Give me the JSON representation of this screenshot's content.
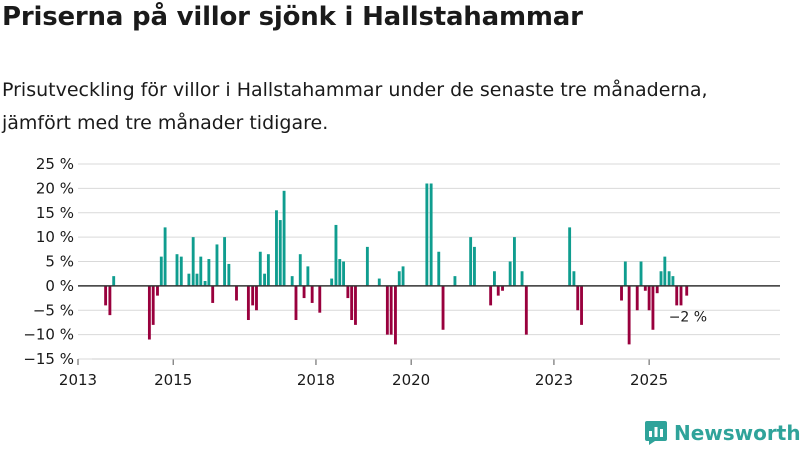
{
  "header": {
    "title": "Priserna på villor sjönk i Hallstahammar",
    "subtitle_line1": "Prisutveckling för villor i Hallstahammar under de senaste tre månaderna,",
    "subtitle_line2": "jämfört med tre månader tidigare."
  },
  "brand": {
    "name": "Newsworthy",
    "icon": "newsworthy-logo-icon",
    "color": "#2fa39a"
  },
  "colors": {
    "positive": "#0f9d8f",
    "negative": "#99003d",
    "grid": "#d9d9d9",
    "zero": "#333333",
    "text": "#1a1a1a"
  },
  "chart_data": {
    "type": "bar",
    "title": "Priserna på villor sjönk i Hallstahammar",
    "xlabel": "",
    "ylabel": "",
    "ylim": [
      -15,
      25
    ],
    "y_ticks": [
      25,
      20,
      15,
      10,
      5,
      0,
      -5,
      -10,
      -15
    ],
    "y_tick_labels": [
      "25 %",
      "20 %",
      "15 %",
      "10 %",
      "5 %",
      "0 %",
      "−5 %",
      "−10 %",
      "−15 %"
    ],
    "x_range": [
      2013.0,
      2027.75
    ],
    "x_ticks": [
      2013,
      2015,
      2018,
      2020,
      2023,
      2025
    ],
    "x_tick_labels": [
      "2013",
      "2015",
      "2018",
      "2020",
      "2023",
      "2025"
    ],
    "annotation": {
      "text": "−2 %",
      "x": 2025.79,
      "value": -2
    },
    "bar_width_years": 0.06,
    "points": [
      {
        "x": 2013.58,
        "value": -4
      },
      {
        "x": 2013.67,
        "value": -6
      },
      {
        "x": 2013.75,
        "value": 2
      },
      {
        "x": 2014.5,
        "value": -11
      },
      {
        "x": 2014.58,
        "value": -8
      },
      {
        "x": 2014.67,
        "value": -2
      },
      {
        "x": 2014.75,
        "value": 6
      },
      {
        "x": 2014.83,
        "value": 12
      },
      {
        "x": 2015.08,
        "value": 6.5
      },
      {
        "x": 2015.17,
        "value": 6
      },
      {
        "x": 2015.33,
        "value": 2.5
      },
      {
        "x": 2015.42,
        "value": 10
      },
      {
        "x": 2015.5,
        "value": 2.5
      },
      {
        "x": 2015.58,
        "value": 6
      },
      {
        "x": 2015.67,
        "value": 1
      },
      {
        "x": 2015.75,
        "value": 5.5
      },
      {
        "x": 2015.83,
        "value": -3.5
      },
      {
        "x": 2015.92,
        "value": 8.5
      },
      {
        "x": 2016.08,
        "value": 10
      },
      {
        "x": 2016.17,
        "value": 4.5
      },
      {
        "x": 2016.33,
        "value": -3
      },
      {
        "x": 2016.58,
        "value": -7
      },
      {
        "x": 2016.67,
        "value": -4
      },
      {
        "x": 2016.75,
        "value": -5
      },
      {
        "x": 2016.83,
        "value": 7
      },
      {
        "x": 2016.92,
        "value": 2.5
      },
      {
        "x": 2017.0,
        "value": 6.5
      },
      {
        "x": 2017.17,
        "value": 15.5
      },
      {
        "x": 2017.25,
        "value": 13.5
      },
      {
        "x": 2017.33,
        "value": 19.5
      },
      {
        "x": 2017.5,
        "value": 2
      },
      {
        "x": 2017.58,
        "value": -7
      },
      {
        "x": 2017.67,
        "value": 6.5
      },
      {
        "x": 2017.75,
        "value": -2.5
      },
      {
        "x": 2017.83,
        "value": 4
      },
      {
        "x": 2017.92,
        "value": -3.5
      },
      {
        "x": 2018.08,
        "value": -5.5
      },
      {
        "x": 2018.33,
        "value": 1.5
      },
      {
        "x": 2018.42,
        "value": 12.5
      },
      {
        "x": 2018.5,
        "value": 5.5
      },
      {
        "x": 2018.58,
        "value": 5
      },
      {
        "x": 2018.67,
        "value": -2.5
      },
      {
        "x": 2018.75,
        "value": -7
      },
      {
        "x": 2018.83,
        "value": -8
      },
      {
        "x": 2019.08,
        "value": 8
      },
      {
        "x": 2019.33,
        "value": 1.5
      },
      {
        "x": 2019.5,
        "value": -10
      },
      {
        "x": 2019.58,
        "value": -10
      },
      {
        "x": 2019.67,
        "value": -12
      },
      {
        "x": 2019.75,
        "value": 3
      },
      {
        "x": 2019.83,
        "value": 4
      },
      {
        "x": 2020.33,
        "value": 21
      },
      {
        "x": 2020.42,
        "value": 21
      },
      {
        "x": 2020.58,
        "value": 7
      },
      {
        "x": 2020.67,
        "value": -9
      },
      {
        "x": 2020.92,
        "value": 2
      },
      {
        "x": 2021.25,
        "value": 10
      },
      {
        "x": 2021.33,
        "value": 8
      },
      {
        "x": 2021.67,
        "value": -4
      },
      {
        "x": 2021.75,
        "value": 3
      },
      {
        "x": 2021.83,
        "value": -2
      },
      {
        "x": 2021.92,
        "value": -1
      },
      {
        "x": 2022.08,
        "value": 5
      },
      {
        "x": 2022.17,
        "value": 10
      },
      {
        "x": 2022.33,
        "value": 3
      },
      {
        "x": 2022.42,
        "value": -10
      },
      {
        "x": 2023.33,
        "value": 12
      },
      {
        "x": 2023.42,
        "value": 3
      },
      {
        "x": 2023.5,
        "value": -5
      },
      {
        "x": 2023.58,
        "value": -8
      },
      {
        "x": 2024.42,
        "value": -3
      },
      {
        "x": 2024.5,
        "value": 5
      },
      {
        "x": 2024.58,
        "value": -12
      },
      {
        "x": 2024.75,
        "value": -5
      },
      {
        "x": 2024.83,
        "value": 5
      },
      {
        "x": 2024.92,
        "value": -1
      },
      {
        "x": 2025.0,
        "value": -5
      },
      {
        "x": 2025.08,
        "value": -9
      },
      {
        "x": 2025.17,
        "value": -1.5
      },
      {
        "x": 2025.25,
        "value": 3
      },
      {
        "x": 2025.33,
        "value": 6
      },
      {
        "x": 2025.42,
        "value": 3
      },
      {
        "x": 2025.5,
        "value": 2
      },
      {
        "x": 2025.58,
        "value": -4
      },
      {
        "x": 2025.67,
        "value": -4
      },
      {
        "x": 2025.79,
        "value": -2
      }
    ]
  }
}
